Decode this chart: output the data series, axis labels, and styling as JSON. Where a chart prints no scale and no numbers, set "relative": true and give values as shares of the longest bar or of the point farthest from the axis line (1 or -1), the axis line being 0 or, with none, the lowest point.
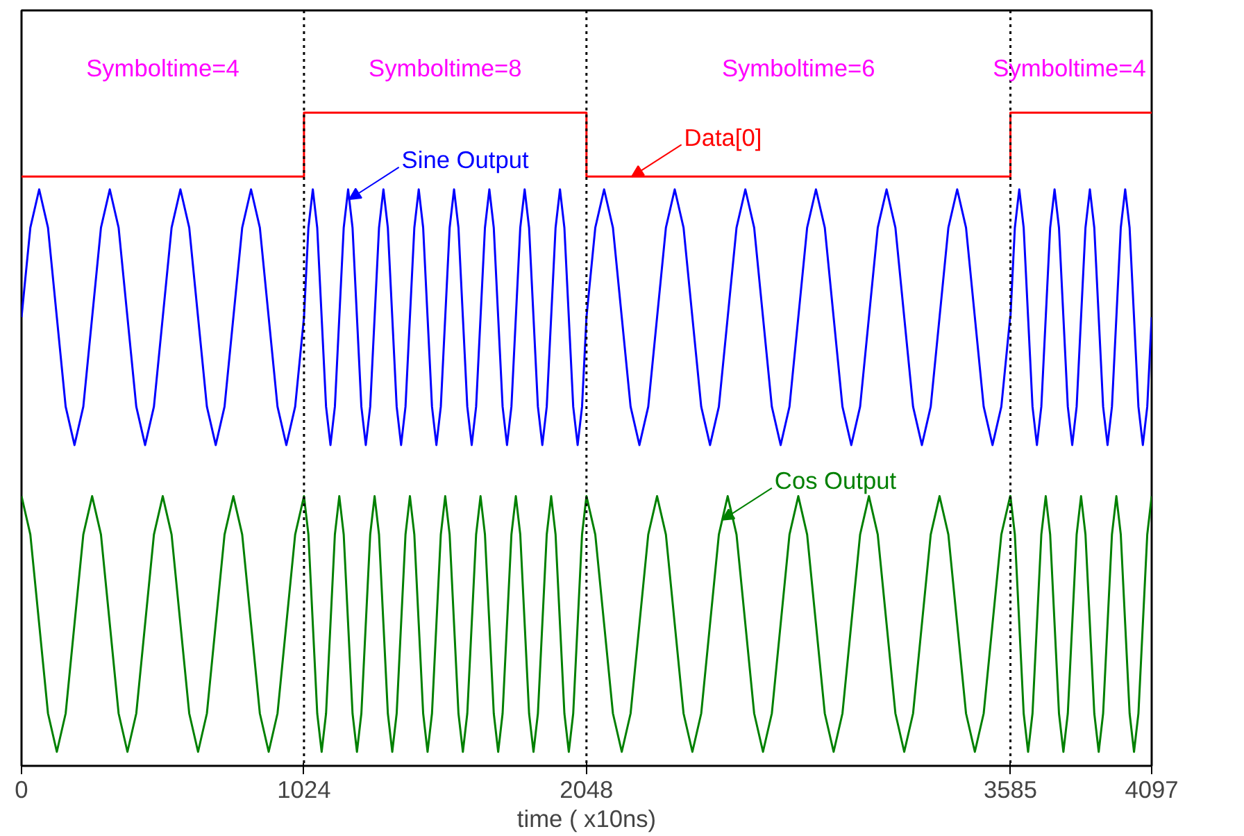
{
  "chart_data": {
    "type": "line",
    "relative": true,
    "xlabel": "time ( x10ns)",
    "xlim": [
      0,
      4097
    ],
    "xticks": [
      0,
      1024,
      2048,
      3585,
      4097
    ],
    "tick_labels": "x",
    "x": [
      0,
      32,
      64,
      96,
      128,
      160,
      192,
      224,
      256,
      288,
      320,
      352,
      384,
      416,
      448,
      480,
      512,
      544,
      576,
      608,
      640,
      672,
      704,
      736,
      768,
      800,
      832,
      864,
      896,
      928,
      960,
      992,
      1024,
      1040,
      1056,
      1072,
      1088,
      1104,
      1120,
      1136,
      1152,
      1168,
      1184,
      1200,
      1216,
      1232,
      1248,
      1264,
      1280,
      1296,
      1312,
      1328,
      1344,
      1360,
      1376,
      1392,
      1408,
      1424,
      1440,
      1456,
      1472,
      1488,
      1504,
      1520,
      1536,
      1552,
      1568,
      1584,
      1600,
      1616,
      1632,
      1648,
      1664,
      1680,
      1696,
      1712,
      1728,
      1744,
      1760,
      1776,
      1792,
      1808,
      1824,
      1840,
      1856,
      1872,
      1888,
      1904,
      1920,
      1936,
      1952,
      1968,
      1984,
      2000,
      2016,
      2032,
      2048,
      2080,
      2112,
      2144,
      2176,
      2208,
      2240,
      2272,
      2304,
      2336,
      2368,
      2400,
      2432,
      2464,
      2496,
      2528,
      2560,
      2592,
      2624,
      2656,
      2688,
      2720,
      2752,
      2784,
      2816,
      2848,
      2880,
      2912,
      2944,
      2976,
      3008,
      3040,
      3072,
      3104,
      3136,
      3168,
      3200,
      3232,
      3264,
      3296,
      3328,
      3360,
      3392,
      3424,
      3456,
      3488,
      3520,
      3552,
      3584,
      3585,
      3601,
      3617,
      3633,
      3649,
      3665,
      3681,
      3697,
      3713,
      3729,
      3745,
      3761,
      3777,
      3793,
      3809,
      3825,
      3841,
      3857,
      3873,
      3889,
      3905,
      3921,
      3937,
      3953,
      3969,
      3985,
      4001,
      4017,
      4033,
      4049,
      4065,
      4081,
      4097
    ],
    "series": [
      {
        "name": "Data[0]",
        "color": "#ff0000",
        "x": [
          0,
          1024,
          1024,
          2048,
          2048,
          3585,
          3585,
          4097
        ],
        "values": [
          0.9,
          0.9,
          1,
          1,
          0.9,
          0.9,
          1,
          1
        ]
      },
      {
        "name": "Sine Output",
        "color": "#0000ff",
        "values": [
          0.68,
          0.82,
          0.88,
          0.82,
          0.68,
          0.54,
          0.48,
          0.54,
          0.68,
          0.82,
          0.88,
          0.82,
          0.68,
          0.54,
          0.48,
          0.54,
          0.68,
          0.82,
          0.88,
          0.82,
          0.68,
          0.54,
          0.48,
          0.54,
          0.68,
          0.82,
          0.88,
          0.82,
          0.68,
          0.54,
          0.48,
          0.54,
          0.68,
          0.82,
          0.88,
          0.82,
          0.68,
          0.54,
          0.48,
          0.54,
          0.68,
          0.82,
          0.88,
          0.82,
          0.68,
          0.54,
          0.48,
          0.54,
          0.68,
          0.82,
          0.88,
          0.82,
          0.68,
          0.54,
          0.48,
          0.54,
          0.68,
          0.82,
          0.88,
          0.82,
          0.68,
          0.54,
          0.48,
          0.54,
          0.68,
          0.82,
          0.88,
          0.82,
          0.68,
          0.54,
          0.48,
          0.54,
          0.68,
          0.82,
          0.88,
          0.82,
          0.68,
          0.54,
          0.48,
          0.54,
          0.68,
          0.82,
          0.88,
          0.82,
          0.68,
          0.54,
          0.48,
          0.54,
          0.68,
          0.82,
          0.88,
          0.82,
          0.68,
          0.54,
          0.48,
          0.54,
          0.68,
          0.82,
          0.88,
          0.82,
          0.68,
          0.54,
          0.48,
          0.54,
          0.68,
          0.82,
          0.88,
          0.82,
          0.68,
          0.54,
          0.48,
          0.54,
          0.68,
          0.82,
          0.88,
          0.82,
          0.68,
          0.54,
          0.48,
          0.54,
          0.68,
          0.82,
          0.88,
          0.82,
          0.68,
          0.54,
          0.48,
          0.54,
          0.68,
          0.82,
          0.88,
          0.82,
          0.68,
          0.54,
          0.48,
          0.54,
          0.68,
          0.82,
          0.88,
          0.82,
          0.68,
          0.54,
          0.48,
          0.54,
          0.68,
          0.68,
          0.82,
          0.88,
          0.82,
          0.68,
          0.54,
          0.48,
          0.54,
          0.68,
          0.82,
          0.88,
          0.82,
          0.68,
          0.54,
          0.48,
          0.54,
          0.68,
          0.82,
          0.88,
          0.82,
          0.68,
          0.54,
          0.48,
          0.54,
          0.68,
          0.82,
          0.88,
          0.82,
          0.68,
          0.54,
          0.48,
          0.54,
          0.68
        ]
      },
      {
        "name": "Cos Output",
        "color": "#008000",
        "values": [
          0.4,
          0.34,
          0.2,
          0.06,
          0,
          0.06,
          0.2,
          0.34,
          0.4,
          0.34,
          0.2,
          0.06,
          0,
          0.06,
          0.2,
          0.34,
          0.4,
          0.34,
          0.2,
          0.06,
          0,
          0.06,
          0.2,
          0.34,
          0.4,
          0.34,
          0.2,
          0.06,
          0,
          0.06,
          0.2,
          0.34,
          0.4,
          0.34,
          0.2,
          0.06,
          0,
          0.06,
          0.2,
          0.34,
          0.4,
          0.34,
          0.2,
          0.06,
          0,
          0.06,
          0.2,
          0.34,
          0.4,
          0.34,
          0.2,
          0.06,
          0,
          0.06,
          0.2,
          0.34,
          0.4,
          0.34,
          0.2,
          0.06,
          0,
          0.06,
          0.2,
          0.34,
          0.4,
          0.34,
          0.2,
          0.06,
          0,
          0.06,
          0.2,
          0.34,
          0.4,
          0.34,
          0.2,
          0.06,
          0,
          0.06,
          0.2,
          0.34,
          0.4,
          0.34,
          0.2,
          0.06,
          0,
          0.06,
          0.2,
          0.34,
          0.4,
          0.34,
          0.2,
          0.06,
          0,
          0.06,
          0.2,
          0.34,
          0.4,
          0.34,
          0.2,
          0.06,
          0,
          0.06,
          0.2,
          0.34,
          0.4,
          0.34,
          0.2,
          0.06,
          0,
          0.06,
          0.2,
          0.34,
          0.4,
          0.34,
          0.2,
          0.06,
          0,
          0.06,
          0.2,
          0.34,
          0.4,
          0.34,
          0.2,
          0.06,
          0,
          0.06,
          0.2,
          0.34,
          0.4,
          0.34,
          0.2,
          0.06,
          0,
          0.06,
          0.2,
          0.34,
          0.4,
          0.34,
          0.2,
          0.06,
          0,
          0.06,
          0.2,
          0.34,
          0.4,
          0.4,
          0.34,
          0.2,
          0.06,
          0,
          0.06,
          0.2,
          0.34,
          0.4,
          0.34,
          0.2,
          0.06,
          0,
          0.06,
          0.2,
          0.34,
          0.4,
          0.34,
          0.2,
          0.06,
          0,
          0.06,
          0.2,
          0.34,
          0.4,
          0.34,
          0.2,
          0.06,
          0,
          0.06,
          0.2,
          0.34,
          0.4
        ]
      }
    ],
    "ref_lines": [
      {
        "axis": "x",
        "value": 1024,
        "color": "#000000",
        "line_style": "dotted"
      },
      {
        "axis": "x",
        "value": 2048,
        "color": "#000000",
        "line_style": "dotted"
      },
      {
        "axis": "x",
        "value": 3585,
        "color": "#000000",
        "line_style": "dotted"
      }
    ],
    "annotations": [
      "Symboltime=4",
      "Symboltime=8",
      "Symboltime=6",
      "Symboltime=4"
    ]
  }
}
